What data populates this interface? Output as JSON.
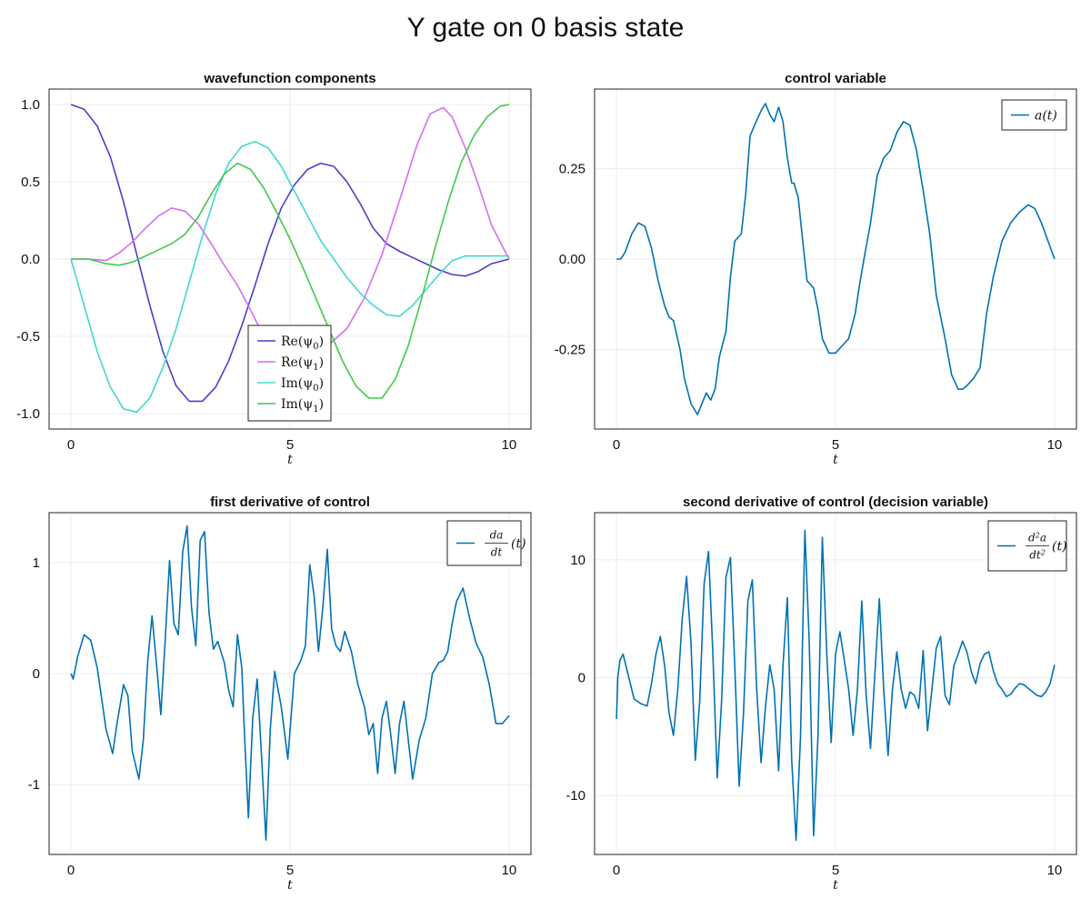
{
  "figure": {
    "title": "Y gate on 0 basis state"
  },
  "colors": {
    "blue": "#0072b2",
    "re0": "#4b3fc9",
    "re1": "#d26ff2",
    "im0": "#40d8d2",
    "im1": "#42c94a"
  },
  "chart_data": [
    {
      "type": "line",
      "title": "wavefunction components",
      "xlabel": "t",
      "xlim": [
        -0.5,
        10.5
      ],
      "ylim": [
        -1.1,
        1.1
      ],
      "xticks": [
        0,
        5,
        10
      ],
      "xtick_labels": [
        "0",
        "5",
        "10"
      ],
      "yticks": [
        1.0,
        0.5,
        0.0,
        -0.5,
        -1.0
      ],
      "ytick_labels": [
        "1.0",
        "0.5",
        "0.0",
        "-0.5",
        "-1.0"
      ],
      "legend_position": "bottom-center",
      "series": [
        {
          "name": "Re(ψ₀)",
          "legend_text": "Re(ψ",
          "legend_sub": "0",
          "color": "#4b3fc9",
          "x": [
            0,
            0.3,
            0.6,
            0.9,
            1.2,
            1.5,
            1.8,
            2.1,
            2.4,
            2.7,
            3.0,
            3.3,
            3.6,
            3.9,
            4.2,
            4.5,
            4.8,
            5.1,
            5.4,
            5.7,
            6.0,
            6.3,
            6.6,
            6.9,
            7.2,
            7.5,
            7.8,
            8.1,
            8.4,
            8.7,
            9.0,
            9.3,
            9.6,
            10.0
          ],
          "y": [
            1.0,
            0.97,
            0.86,
            0.66,
            0.37,
            0.03,
            -0.3,
            -0.6,
            -0.82,
            -0.92,
            -0.92,
            -0.83,
            -0.66,
            -0.43,
            -0.17,
            0.1,
            0.33,
            0.48,
            0.58,
            0.62,
            0.6,
            0.5,
            0.36,
            0.2,
            0.1,
            0.05,
            0.01,
            -0.03,
            -0.07,
            -0.1,
            -0.11,
            -0.08,
            -0.03,
            0.0
          ]
        },
        {
          "name": "Re(ψ₁)",
          "legend_text": "Re(ψ",
          "legend_sub": "1",
          "color": "#d26ff2",
          "x": [
            0,
            0.4,
            0.8,
            1.1,
            1.4,
            1.7,
            2.0,
            2.3,
            2.6,
            2.9,
            3.2,
            3.5,
            3.8,
            4.1,
            4.4,
            4.6,
            4.8,
            5.0,
            5.3,
            5.6,
            5.9,
            6.3,
            6.7,
            7.1,
            7.5,
            7.9,
            8.2,
            8.5,
            8.7,
            9.0,
            9.3,
            9.6,
            10.0
          ],
          "y": [
            0.0,
            0.0,
            -0.01,
            0.04,
            0.11,
            0.2,
            0.28,
            0.33,
            0.31,
            0.23,
            0.1,
            -0.04,
            -0.17,
            -0.33,
            -0.5,
            -0.61,
            -0.68,
            -0.72,
            -0.68,
            -0.6,
            -0.55,
            -0.45,
            -0.25,
            0.03,
            0.38,
            0.74,
            0.94,
            0.98,
            0.92,
            0.72,
            0.48,
            0.22,
            0.0
          ]
        },
        {
          "name": "Im(ψ₀)",
          "legend_text": "Im(ψ",
          "legend_sub": "0",
          "color": "#40d8d2",
          "x": [
            0,
            0.3,
            0.6,
            0.9,
            1.2,
            1.5,
            1.8,
            2.1,
            2.4,
            2.7,
            3.0,
            3.3,
            3.6,
            3.9,
            4.2,
            4.5,
            4.8,
            5.1,
            5.4,
            5.7,
            6.0,
            6.3,
            6.6,
            6.9,
            7.2,
            7.5,
            7.8,
            8.1,
            8.4,
            8.7,
            9.0,
            9.3,
            9.6,
            10.0
          ],
          "y": [
            0.0,
            -0.3,
            -0.6,
            -0.83,
            -0.97,
            -0.99,
            -0.9,
            -0.7,
            -0.45,
            -0.15,
            0.15,
            0.42,
            0.62,
            0.73,
            0.76,
            0.72,
            0.6,
            0.44,
            0.28,
            0.12,
            0.0,
            -0.12,
            -0.22,
            -0.3,
            -0.36,
            -0.37,
            -0.3,
            -0.2,
            -0.1,
            -0.01,
            0.02,
            0.02,
            0.02,
            0.02
          ]
        },
        {
          "name": "Im(ψ₁)",
          "legend_text": "Im(ψ",
          "legend_sub": "1",
          "color": "#42c94a",
          "x": [
            0,
            0.4,
            0.8,
            1.1,
            1.4,
            1.7,
            2.0,
            2.3,
            2.6,
            2.9,
            3.2,
            3.5,
            3.8,
            4.1,
            4.4,
            4.7,
            5.0,
            5.3,
            5.6,
            5.9,
            6.2,
            6.5,
            6.8,
            7.1,
            7.4,
            7.7,
            8.0,
            8.3,
            8.6,
            8.9,
            9.2,
            9.5,
            9.8,
            10.0
          ],
          "y": [
            0.0,
            0.0,
            -0.03,
            -0.04,
            -0.02,
            0.02,
            0.06,
            0.1,
            0.16,
            0.27,
            0.42,
            0.55,
            0.62,
            0.58,
            0.46,
            0.3,
            0.13,
            -0.06,
            -0.26,
            -0.46,
            -0.66,
            -0.82,
            -0.9,
            -0.9,
            -0.78,
            -0.56,
            -0.26,
            0.06,
            0.36,
            0.62,
            0.8,
            0.92,
            0.99,
            1.0
          ]
        }
      ]
    },
    {
      "type": "line",
      "title": "control variable",
      "xlabel": "t",
      "xlim": [
        -0.5,
        10.5
      ],
      "ylim": [
        -0.47,
        0.47
      ],
      "xticks": [
        0,
        5,
        10
      ],
      "xtick_labels": [
        "0",
        "5",
        "10"
      ],
      "yticks": [
        0.25,
        0.0,
        -0.25
      ],
      "ytick_labels": [
        "0.25",
        "0.00",
        "-0.25"
      ],
      "legend_position": "top-right",
      "series": [
        {
          "name": "a(t)",
          "legend_text": "a(t)",
          "color": "#0072b2",
          "x": [
            0,
            0.1,
            0.2,
            0.35,
            0.5,
            0.65,
            0.8,
            0.95,
            1.1,
            1.2,
            1.3,
            1.45,
            1.55,
            1.7,
            1.85,
            1.95,
            2.05,
            2.15,
            2.25,
            2.35,
            2.5,
            2.6,
            2.7,
            2.85,
            2.95,
            3.05,
            3.15,
            3.3,
            3.4,
            3.5,
            3.6,
            3.7,
            3.8,
            3.9,
            4.0,
            4.05,
            4.15,
            4.25,
            4.35,
            4.5,
            4.6,
            4.7,
            4.85,
            5.0,
            5.15,
            5.3,
            5.45,
            5.55,
            5.65,
            5.8,
            5.95,
            6.1,
            6.25,
            6.4,
            6.55,
            6.7,
            6.85,
            7.0,
            7.15,
            7.3,
            7.5,
            7.65,
            7.8,
            7.9,
            8.0,
            8.15,
            8.3,
            8.45,
            8.6,
            8.8,
            9.0,
            9.2,
            9.4,
            9.55,
            9.7,
            9.85,
            10.0
          ],
          "y": [
            0.0,
            0.0,
            0.02,
            0.07,
            0.1,
            0.09,
            0.03,
            -0.06,
            -0.13,
            -0.16,
            -0.17,
            -0.25,
            -0.33,
            -0.4,
            -0.43,
            -0.4,
            -0.37,
            -0.39,
            -0.36,
            -0.27,
            -0.2,
            -0.05,
            0.05,
            0.07,
            0.18,
            0.34,
            0.37,
            0.41,
            0.43,
            0.4,
            0.38,
            0.42,
            0.38,
            0.28,
            0.21,
            0.21,
            0.17,
            0.05,
            -0.06,
            -0.08,
            -0.14,
            -0.22,
            -0.26,
            -0.26,
            -0.24,
            -0.22,
            -0.15,
            -0.07,
            0.0,
            0.1,
            0.23,
            0.28,
            0.3,
            0.35,
            0.38,
            0.37,
            0.3,
            0.19,
            0.07,
            -0.1,
            -0.22,
            -0.32,
            -0.36,
            -0.36,
            -0.35,
            -0.33,
            -0.3,
            -0.15,
            -0.05,
            0.05,
            0.1,
            0.13,
            0.15,
            0.14,
            0.1,
            0.05,
            0.0
          ]
        }
      ]
    },
    {
      "type": "line",
      "title": "first derivative of control",
      "xlabel": "t",
      "xlim": [
        -0.5,
        10.5
      ],
      "ylim": [
        -1.63,
        1.45
      ],
      "xticks": [
        0,
        5,
        10
      ],
      "xtick_labels": [
        "0",
        "5",
        "10"
      ],
      "yticks": [
        1,
        0,
        -1
      ],
      "ytick_labels": [
        "1",
        "0",
        "-1"
      ],
      "legend_position": "top-right",
      "series": [
        {
          "name": "da/dt(t)",
          "legend_num": "da",
          "legend_den": "dt",
          "legend_tail": "(t)",
          "color": "#0072b2",
          "x": [
            0,
            0.05,
            0.15,
            0.3,
            0.45,
            0.6,
            0.8,
            0.95,
            1.05,
            1.2,
            1.3,
            1.4,
            1.55,
            1.65,
            1.75,
            1.85,
            1.95,
            2.05,
            2.15,
            2.25,
            2.35,
            2.45,
            2.55,
            2.65,
            2.75,
            2.85,
            2.95,
            3.05,
            3.15,
            3.25,
            3.35,
            3.5,
            3.6,
            3.7,
            3.8,
            3.9,
            3.95,
            4.05,
            4.15,
            4.25,
            4.35,
            4.45,
            4.55,
            4.65,
            4.8,
            4.95,
            5.1,
            5.25,
            5.35,
            5.45,
            5.55,
            5.65,
            5.75,
            5.85,
            5.95,
            6.05,
            6.15,
            6.25,
            6.4,
            6.55,
            6.7,
            6.8,
            6.9,
            7.0,
            7.1,
            7.2,
            7.3,
            7.4,
            7.5,
            7.6,
            7.7,
            7.8,
            7.95,
            8.1,
            8.25,
            8.4,
            8.5,
            8.6,
            8.7,
            8.8,
            8.95,
            9.1,
            9.25,
            9.4,
            9.55,
            9.7,
            9.85,
            10.0
          ],
          "y": [
            0.0,
            -0.05,
            0.15,
            0.35,
            0.3,
            0.05,
            -0.5,
            -0.72,
            -0.45,
            -0.1,
            -0.2,
            -0.7,
            -0.95,
            -0.6,
            0.1,
            0.52,
            0.1,
            -0.37,
            0.3,
            1.02,
            0.45,
            0.35,
            1.1,
            1.33,
            0.6,
            0.25,
            1.2,
            1.28,
            0.55,
            0.22,
            0.29,
            0.1,
            -0.15,
            -0.3,
            0.35,
            0.05,
            -0.45,
            -1.3,
            -0.4,
            -0.05,
            -0.75,
            -1.5,
            -0.5,
            0.02,
            -0.3,
            -0.77,
            0.0,
            0.12,
            0.25,
            0.98,
            0.7,
            0.2,
            0.6,
            1.12,
            0.4,
            0.25,
            0.2,
            0.38,
            0.2,
            -0.1,
            -0.3,
            -0.55,
            -0.45,
            -0.9,
            -0.4,
            -0.25,
            -0.55,
            -0.9,
            -0.45,
            -0.25,
            -0.6,
            -0.95,
            -0.6,
            -0.4,
            0.0,
            0.1,
            0.12,
            0.2,
            0.45,
            0.65,
            0.77,
            0.5,
            0.27,
            0.15,
            -0.1,
            -0.45,
            -0.45,
            -0.38
          ]
        }
      ]
    },
    {
      "type": "line",
      "title": "second derivative of control (decision variable)",
      "xlabel": "t",
      "xlim": [
        -0.5,
        10.5
      ],
      "ylim": [
        -15,
        14
      ],
      "xticks": [
        0,
        5,
        10
      ],
      "xtick_labels": [
        "0",
        "5",
        "10"
      ],
      "yticks": [
        10,
        0,
        -10
      ],
      "ytick_labels": [
        "10",
        "0",
        "-10"
      ],
      "legend_position": "top-right",
      "series": [
        {
          "name": "d²a/dt²(t)",
          "legend_num": "d",
          "legend_num_sup": "2",
          "legend_num2": "a",
          "legend_den": "dt",
          "legend_den_sup": "2",
          "legend_tail": "(t)",
          "color": "#0072b2",
          "x": [
            0,
            0.03,
            0.08,
            0.15,
            0.25,
            0.4,
            0.55,
            0.7,
            0.8,
            0.9,
            1.0,
            1.1,
            1.2,
            1.3,
            1.4,
            1.5,
            1.6,
            1.7,
            1.8,
            1.9,
            2.0,
            2.1,
            2.2,
            2.3,
            2.4,
            2.5,
            2.6,
            2.7,
            2.8,
            2.9,
            3.0,
            3.1,
            3.2,
            3.3,
            3.4,
            3.5,
            3.6,
            3.7,
            3.8,
            3.9,
            4.0,
            4.1,
            4.2,
            4.3,
            4.4,
            4.5,
            4.6,
            4.7,
            4.8,
            4.9,
            5.0,
            5.1,
            5.2,
            5.3,
            5.4,
            5.5,
            5.6,
            5.7,
            5.8,
            5.9,
            6.0,
            6.1,
            6.2,
            6.3,
            6.4,
            6.5,
            6.6,
            6.7,
            6.8,
            6.9,
            7.0,
            7.1,
            7.2,
            7.3,
            7.4,
            7.5,
            7.6,
            7.7,
            7.8,
            7.9,
            8.0,
            8.1,
            8.2,
            8.3,
            8.4,
            8.5,
            8.6,
            8.7,
            8.8,
            8.9,
            9.0,
            9.1,
            9.2,
            9.3,
            9.4,
            9.5,
            9.6,
            9.7,
            9.8,
            9.9,
            10.0
          ],
          "y": [
            -3.5,
            0.0,
            1.5,
            2.0,
            0.5,
            -1.8,
            -2.2,
            -2.4,
            -0.5,
            2.0,
            3.5,
            1.0,
            -3.0,
            -4.9,
            -1.0,
            5.0,
            8.6,
            3.0,
            -7.0,
            -2.0,
            8.0,
            10.7,
            2.0,
            -8.5,
            -2.0,
            8.5,
            10.2,
            1.0,
            -9.2,
            -3.0,
            6.5,
            8.3,
            -1.0,
            -7.2,
            -2.5,
            1.1,
            -1.0,
            -7.9,
            1.0,
            6.8,
            -7.0,
            -13.8,
            -5.0,
            12.5,
            3.0,
            -13.4,
            -5.0,
            11.9,
            2.0,
            -5.5,
            2.0,
            3.9,
            1.5,
            -1.0,
            -4.9,
            -1.0,
            6.5,
            -1.5,
            -6.0,
            0.5,
            6.7,
            -1.0,
            -6.6,
            -1.0,
            2.2,
            -1.0,
            -2.6,
            -1.2,
            -1.5,
            -2.6,
            2.3,
            -4.5,
            -1.0,
            2.5,
            3.5,
            -1.5,
            -2.3,
            1.0,
            2.0,
            3.1,
            2.2,
            0.5,
            -0.5,
            1.2,
            2.0,
            2.2,
            0.6,
            -0.5,
            -1.0,
            -1.6,
            -1.4,
            -0.9,
            -0.5,
            -0.6,
            -0.9,
            -1.2,
            -1.5,
            -1.6,
            -1.2,
            -0.5,
            1.1
          ]
        }
      ]
    }
  ]
}
